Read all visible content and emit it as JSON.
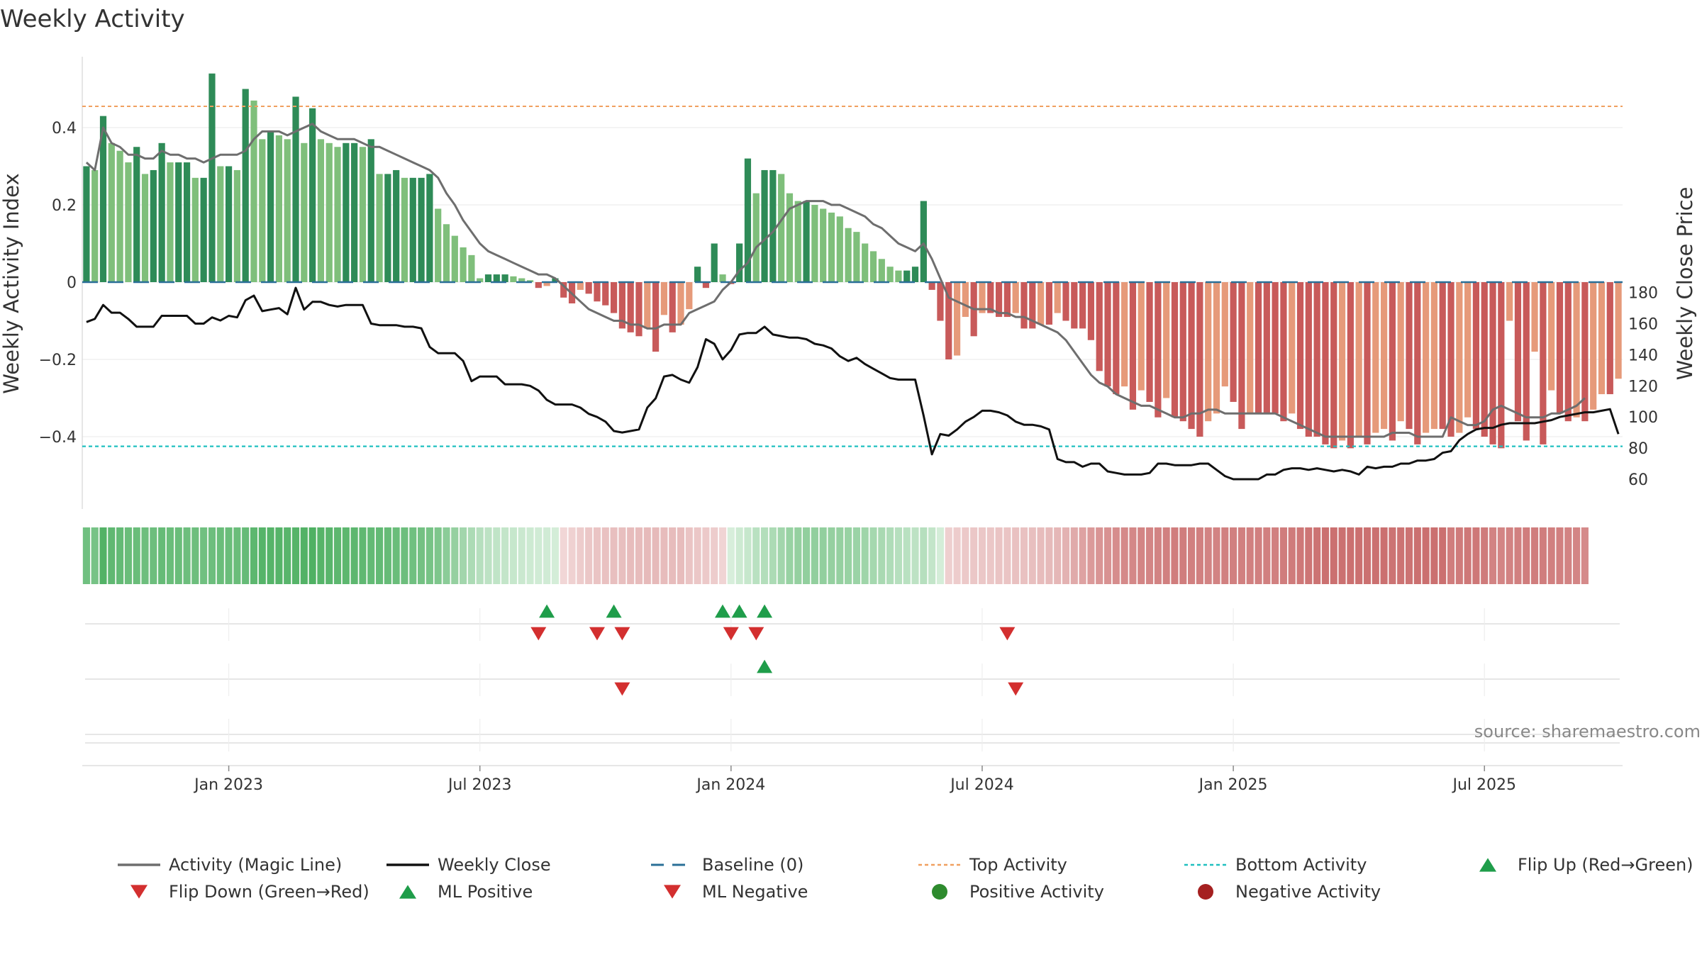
{
  "chart_data": {
    "type": "bar",
    "title": "Weekly Activity",
    "ylabel": "Weekly Activity Index",
    "ylabel_right": "Weekly Close Price",
    "ylim": [
      -0.58,
      0.58
    ],
    "ylim_right": [
      53,
      196
    ],
    "yticks": [
      {
        "value": 0.4,
        "label": "0.4"
      },
      {
        "value": 0.2,
        "label": "0.2"
      },
      {
        "value": 0,
        "label": "0"
      },
      {
        "value": -0.2,
        "label": "−0.2"
      },
      {
        "value": -0.4,
        "label": "−0.4"
      }
    ],
    "yticks_right": [
      {
        "value": 180,
        "label": "180"
      },
      {
        "value": 160,
        "label": "160"
      },
      {
        "value": 140,
        "label": "140"
      },
      {
        "value": 120,
        "label": "120"
      },
      {
        "value": 100,
        "label": "100"
      },
      {
        "value": 80,
        "label": "80"
      },
      {
        "value": 60,
        "label": "60"
      }
    ],
    "xticks": [
      {
        "week": 17,
        "label": "Jan 2023"
      },
      {
        "week": 47,
        "label": "Jul 2023"
      },
      {
        "week": 77,
        "label": "Jan 2024"
      },
      {
        "week": 107,
        "label": "Jul 2024"
      },
      {
        "week": 137,
        "label": "Jan 2025"
      },
      {
        "week": 167,
        "label": "Jul 2025"
      }
    ],
    "top_activity": 0.455,
    "bottom_activity": -0.425,
    "activity": [
      0.3,
      0.29,
      0.43,
      0.36,
      0.34,
      0.31,
      0.35,
      0.28,
      0.29,
      0.36,
      0.31,
      0.31,
      0.31,
      0.27,
      0.27,
      0.54,
      0.3,
      0.3,
      0.29,
      0.5,
      0.47,
      0.37,
      0.39,
      0.38,
      0.37,
      0.48,
      0.36,
      0.45,
      0.37,
      0.36,
      0.35,
      0.36,
      0.36,
      0.35,
      0.37,
      0.28,
      0.28,
      0.29,
      0.27,
      0.27,
      0.27,
      0.28,
      0.19,
      0.15,
      0.12,
      0.09,
      0.07,
      0.01,
      0.02,
      0.02,
      0.02,
      0.015,
      0.01,
      0.005,
      -0.015,
      -0.01,
      0.01,
      -0.04,
      -0.055,
      -0.02,
      -0.03,
      -0.05,
      -0.06,
      -0.08,
      -0.12,
      -0.13,
      -0.14,
      -0.12,
      -0.18,
      -0.085,
      -0.13,
      -0.11,
      -0.07,
      0.04,
      -0.015,
      0.1,
      0.02,
      -0.005,
      0.1,
      0.32,
      0.23,
      0.29,
      0.29,
      0.28,
      0.23,
      0.21,
      0.21,
      0.2,
      0.19,
      0.18,
      0.17,
      0.14,
      0.13,
      0.1,
      0.08,
      0.06,
      0.04,
      0.03,
      0.03,
      0.04,
      0.21,
      -0.02,
      -0.1,
      -0.2,
      -0.19,
      -0.09,
      -0.14,
      -0.08,
      -0.08,
      -0.09,
      -0.09,
      -0.08,
      -0.12,
      -0.12,
      -0.11,
      -0.11,
      -0.08,
      -0.1,
      -0.12,
      -0.12,
      -0.15,
      -0.23,
      -0.27,
      -0.29,
      -0.27,
      -0.33,
      -0.28,
      -0.31,
      -0.35,
      -0.3,
      -0.35,
      -0.36,
      -0.38,
      -0.4,
      -0.36,
      -0.34,
      -0.27,
      -0.31,
      -0.38,
      -0.34,
      -0.34,
      -0.34,
      -0.34,
      -0.36,
      -0.34,
      -0.38,
      -0.4,
      -0.4,
      -0.42,
      -0.43,
      -0.41,
      -0.43,
      -0.4,
      -0.42,
      -0.39,
      -0.38,
      -0.41,
      -0.36,
      -0.38,
      -0.42,
      -0.39,
      -0.38,
      -0.38,
      -0.4,
      -0.39,
      -0.35,
      -0.38,
      -0.4,
      -0.42,
      -0.43,
      -0.1,
      -0.36,
      -0.41,
      -0.18,
      -0.42,
      -0.28,
      -0.34,
      -0.36,
      -0.35,
      -0.36,
      -0.33,
      -0.29,
      -0.29,
      -0.25
    ],
    "magic_line": [
      0.31,
      0.29,
      0.4,
      0.36,
      0.35,
      0.33,
      0.33,
      0.32,
      0.32,
      0.34,
      0.33,
      0.33,
      0.32,
      0.32,
      0.31,
      0.32,
      0.33,
      0.33,
      0.33,
      0.34,
      0.37,
      0.39,
      0.39,
      0.39,
      0.38,
      0.39,
      0.4,
      0.41,
      0.39,
      0.38,
      0.37,
      0.37,
      0.37,
      0.36,
      0.35,
      0.35,
      0.34,
      0.33,
      0.32,
      0.31,
      0.3,
      0.29,
      0.27,
      0.23,
      0.2,
      0.16,
      0.13,
      0.1,
      0.08,
      0.07,
      0.06,
      0.05,
      0.04,
      0.03,
      0.02,
      0.02,
      0.01,
      -0.01,
      -0.03,
      -0.05,
      -0.07,
      -0.08,
      -0.09,
      -0.1,
      -0.1,
      -0.11,
      -0.11,
      -0.12,
      -0.12,
      -0.11,
      -0.11,
      -0.11,
      -0.08,
      -0.07,
      -0.06,
      -0.05,
      -0.02,
      0.0,
      0.03,
      0.05,
      0.09,
      0.11,
      0.13,
      0.16,
      0.19,
      0.2,
      0.21,
      0.21,
      0.21,
      0.2,
      0.2,
      0.19,
      0.18,
      0.17,
      0.15,
      0.14,
      0.12,
      0.1,
      0.09,
      0.08,
      0.1,
      0.06,
      0.01,
      -0.04,
      -0.05,
      -0.06,
      -0.07,
      -0.07,
      -0.07,
      -0.08,
      -0.08,
      -0.09,
      -0.09,
      -0.1,
      -0.11,
      -0.12,
      -0.13,
      -0.15,
      -0.18,
      -0.21,
      -0.24,
      -0.26,
      -0.27,
      -0.29,
      -0.3,
      -0.31,
      -0.32,
      -0.32,
      -0.33,
      -0.34,
      -0.35,
      -0.35,
      -0.34,
      -0.34,
      -0.33,
      -0.33,
      -0.34,
      -0.34,
      -0.34,
      -0.34,
      -0.34,
      -0.34,
      -0.34,
      -0.35,
      -0.36,
      -0.37,
      -0.38,
      -0.39,
      -0.4,
      -0.4,
      -0.4,
      -0.4,
      -0.4,
      -0.4,
      -0.4,
      -0.4,
      -0.39,
      -0.39,
      -0.39,
      -0.4,
      -0.4,
      -0.4,
      -0.4,
      -0.35,
      -0.36,
      -0.37,
      -0.37,
      -0.36,
      -0.33,
      -0.32,
      -0.33,
      -0.34,
      -0.35,
      -0.35,
      -0.35,
      -0.34,
      -0.34,
      -0.33,
      -0.32,
      -0.3
    ],
    "weekly_close": [
      161,
      163,
      172,
      167,
      167,
      163,
      158,
      158,
      158,
      165,
      165,
      165,
      165,
      160,
      160,
      164,
      162,
      165,
      164,
      175,
      178,
      168,
      169,
      170,
      166,
      183,
      169,
      174,
      174,
      172,
      171,
      172,
      172,
      172,
      160,
      159,
      159,
      159,
      158,
      158,
      157,
      145,
      141,
      141,
      141,
      136,
      123,
      126,
      126,
      126,
      121,
      121,
      121,
      120,
      117,
      111,
      108,
      108,
      108,
      106,
      102,
      100,
      97,
      91,
      90,
      91,
      92,
      106,
      112,
      126,
      127,
      124,
      122,
      132,
      150,
      147,
      137,
      143,
      153,
      154,
      154,
      158,
      153,
      152,
      151,
      151,
      150,
      147,
      146,
      144,
      139,
      136,
      138,
      134,
      131,
      128,
      125,
      124,
      124,
      124,
      101,
      76,
      89,
      88,
      92,
      97,
      100,
      104,
      104,
      103,
      101,
      97,
      95,
      95,
      94,
      92,
      73,
      71,
      71,
      68,
      70,
      70,
      65,
      64,
      63,
      63,
      63,
      64,
      70,
      70,
      69,
      69,
      69,
      70,
      70,
      66,
      62,
      60,
      60,
      60,
      60,
      63,
      63,
      66,
      67,
      67,
      66,
      67,
      66,
      65,
      66,
      65,
      63,
      68,
      67,
      68,
      68,
      70,
      70,
      72,
      72,
      73,
      77,
      78,
      85,
      89,
      92,
      93,
      93,
      95,
      96,
      96,
      96,
      96,
      97,
      98,
      100,
      101,
      102,
      103,
      103,
      104,
      105,
      89
    ],
    "heat_strip_note": "green then pale then red shading by week",
    "flip_up_weeks": [
      55,
      63,
      76,
      78,
      81
    ],
    "flip_down_weeks": [
      54,
      61,
      64,
      77,
      80,
      110
    ],
    "ml_positive_weeks": [
      81
    ],
    "ml_negative_weeks": [
      64,
      111
    ],
    "colors": {
      "positive_strong": "#2e8b57",
      "positive_light": "#7fbf7b",
      "negative_strong": "#c85a5a",
      "negative_light": "#e69a7a",
      "magic_line": "#6e6e6e",
      "weekly_close": "#111111",
      "baseline": "#2a6f97",
      "top_activity": "#f0a060",
      "bottom_activity": "#20c0c0",
      "flip_up": "#1f9d4a",
      "flip_down": "#d32f2f",
      "positive_marker": "#2e8b2e",
      "negative_marker": "#a52020"
    },
    "legend": [
      {
        "label": "Activity (Magic Line)",
        "kind": "line",
        "color": "#6e6e6e"
      },
      {
        "label": "Weekly Close",
        "kind": "line",
        "color": "#111111"
      },
      {
        "label": "Baseline (0)",
        "kind": "dash",
        "color": "#2a6f97"
      },
      {
        "label": "Top Activity",
        "kind": "dot",
        "color": "#f0a060"
      },
      {
        "label": "Bottom Activity",
        "kind": "dot",
        "color": "#20c0c0"
      },
      {
        "label": "Flip Up (Red→Green)",
        "kind": "up",
        "color": "#1f9d4a"
      },
      {
        "label": "Flip Down (Green→Red)",
        "kind": "down",
        "color": "#d32f2f"
      },
      {
        "label": "ML Positive",
        "kind": "up",
        "color": "#1f9d4a"
      },
      {
        "label": "ML Negative",
        "kind": "down",
        "color": "#d32f2f"
      },
      {
        "label": "Positive Activity",
        "kind": "circle",
        "color": "#2e8b2e"
      },
      {
        "label": "Negative Activity",
        "kind": "circle",
        "color": "#a52020"
      }
    ],
    "source": "source: sharemaestro.com",
    "legend_position": "bottom"
  }
}
